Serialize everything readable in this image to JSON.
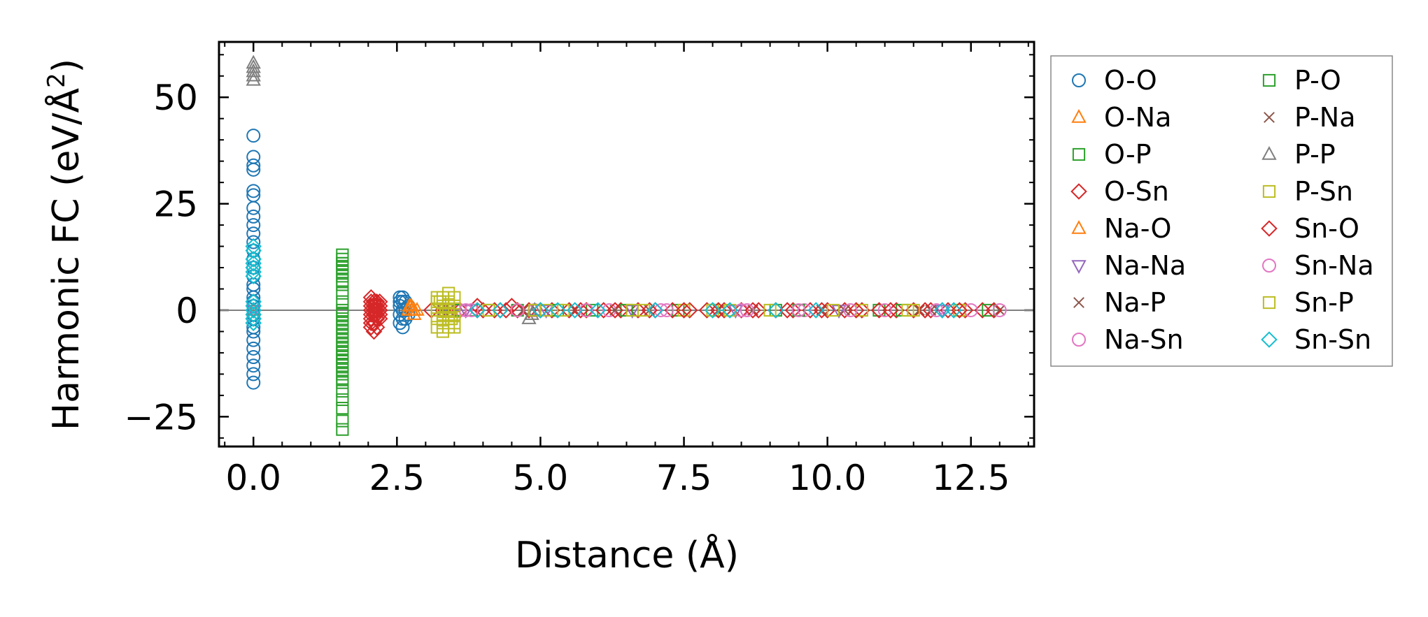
{
  "chart_data": {
    "type": "scatter",
    "title": "",
    "xlabel": "Distance (Å)",
    "ylabel": "Harmonic FC (eV/Å²)",
    "ylabel_main": "Harmonic FC (eV/Å",
    "ylabel_sup": "2",
    "ylabel_close": ")",
    "xlim": [
      -0.6,
      13.6
    ],
    "ylim": [
      -32,
      63
    ],
    "xticks": [
      0.0,
      2.5,
      5.0,
      7.5,
      10.0,
      12.5
    ],
    "xtick_labels": [
      "0.0",
      "2.5",
      "5.0",
      "7.5",
      "10.0",
      "12.5"
    ],
    "yticks": [
      -25,
      0,
      25,
      50
    ],
    "ytick_labels": [
      "−25",
      "0",
      "25",
      "50"
    ],
    "zero_line": 0,
    "grid": false,
    "legend_position": "outside-right",
    "series": [
      {
        "name": "O-O",
        "color": "#1f77b4",
        "marker": "circle",
        "x": [
          0,
          0,
          0,
          0,
          0,
          0,
          0,
          0,
          0,
          0,
          0,
          0,
          0,
          0,
          0,
          0,
          0,
          0,
          0,
          0,
          0,
          0,
          0,
          0,
          0,
          0,
          0,
          0,
          0,
          0,
          2.55,
          2.55,
          2.55,
          2.55,
          2.55,
          2.6,
          2.6,
          2.6,
          2.6,
          2.6,
          2.65,
          2.65,
          2.65,
          2.7,
          2.7
        ],
        "y": [
          41,
          36,
          34,
          33,
          28,
          27,
          24,
          22,
          20,
          18,
          16,
          14,
          12,
          10,
          8,
          6,
          5,
          3,
          2,
          1,
          -1,
          -2,
          -4,
          -5,
          -7,
          -9,
          -11,
          -13,
          -15,
          -17,
          3,
          2,
          1,
          -1,
          -3,
          3,
          2,
          0,
          -2,
          -4,
          2,
          0,
          -2,
          1,
          -1
        ]
      },
      {
        "name": "O-Na",
        "color": "#ff7f0e",
        "marker": "triangle-up",
        "x": [
          2.7,
          2.72,
          2.75,
          2.8,
          2.85
        ],
        "y": [
          0,
          1,
          0,
          -1,
          0
        ]
      },
      {
        "name": "O-P",
        "color": "#2ca02c",
        "marker": "square",
        "x": [
          1.55,
          1.55,
          1.55,
          1.55,
          1.55,
          1.55,
          1.55,
          1.55,
          1.55,
          1.55,
          1.55,
          1.55,
          1.55,
          1.55,
          1.55,
          1.55,
          1.55,
          1.55,
          1.55,
          1.55,
          1.55,
          1.55,
          1.55,
          1.55,
          1.55,
          1.55,
          1.55,
          1.55,
          3.8,
          4.6,
          5.9,
          7.4,
          9.1,
          10.9,
          12.3
        ],
        "y": [
          12,
          11,
          10,
          8,
          6,
          4,
          2,
          0,
          -1,
          -2,
          -3,
          -4,
          -5,
          -6,
          -7,
          -8,
          -9,
          -10,
          -11,
          -12,
          -13,
          -15,
          -17,
          -19,
          -21,
          -23,
          -26,
          -28,
          0,
          0,
          0,
          0,
          0,
          0,
          0
        ]
      },
      {
        "name": "O-Sn",
        "color": "#d62728",
        "marker": "diamond",
        "x": [
          2.05,
          2.05,
          2.05,
          2.05,
          2.05,
          2.05,
          2.05,
          2.05,
          2.1,
          2.1,
          2.1,
          2.1,
          2.1,
          2.1,
          2.15,
          2.15,
          2.15,
          2.15,
          2.15,
          2.15,
          2.2,
          2.2,
          2.2,
          2.2,
          2.2,
          3.1,
          3.3,
          3.6,
          3.9,
          4.0,
          4.2,
          4.4,
          4.6,
          4.8,
          5.2,
          5.5,
          5.8,
          6.1,
          6.4,
          6.7,
          7.0,
          7.3,
          7.6,
          7.9,
          8.2,
          8.5,
          8.8,
          9.1,
          9.4,
          9.7,
          10.0,
          10.3,
          10.6,
          10.9,
          11.2,
          11.5,
          11.8,
          12.1,
          12.4,
          12.7
        ],
        "y": [
          3,
          2,
          1,
          0,
          -1,
          -2,
          -3,
          -4,
          2,
          1,
          0,
          -1,
          -3,
          -5,
          2,
          1,
          0,
          -1,
          -2,
          -4,
          2,
          1,
          0,
          -1,
          -2,
          0,
          0,
          0,
          1,
          0,
          0,
          0,
          0,
          0,
          0,
          0,
          0,
          0,
          0,
          0,
          0,
          0,
          0,
          0,
          0,
          0,
          0,
          0,
          0,
          0,
          0,
          0,
          0,
          0,
          0,
          0,
          0,
          0,
          0,
          0
        ]
      },
      {
        "name": "Na-O",
        "color": "#ff7f0e",
        "marker": "triangle-up",
        "x": [
          2.75,
          2.8
        ],
        "y": [
          1,
          0
        ]
      },
      {
        "name": "Na-Na",
        "color": "#9467bd",
        "marker": "triangle-down",
        "x": [
          0,
          3.7,
          5.1,
          6.6,
          8.4,
          10.2,
          12.0
        ],
        "y": [
          0,
          0,
          0,
          0,
          0,
          0,
          0
        ]
      },
      {
        "name": "Na-P",
        "color": "#8c564b",
        "marker": "x",
        "x": [
          3.4,
          5.6,
          6.9,
          8.7,
          10.3,
          11.8,
          13.0
        ],
        "y": [
          0,
          0,
          0,
          0,
          0,
          0,
          0
        ]
      },
      {
        "name": "Na-Sn",
        "color": "#e377c2",
        "marker": "circle",
        "x": [
          3.6,
          3.8,
          4.9,
          6.2,
          7.1,
          8.5,
          9.6,
          11.0,
          12.5
        ],
        "y": [
          0,
          0,
          0,
          0,
          0,
          0,
          0,
          0,
          0
        ]
      },
      {
        "name": "P-O",
        "color": "#2ca02c",
        "marker": "square",
        "x": [
          1.55,
          1.55,
          1.55,
          1.55,
          1.55,
          1.55,
          1.55,
          1.55,
          3.5,
          4.1,
          5.3,
          6.5,
          8.0,
          9.5,
          11.3,
          12.8
        ],
        "y": [
          13,
          11,
          9,
          7,
          -10,
          -12,
          -14,
          -16,
          0,
          0,
          0,
          0,
          0,
          0,
          0,
          0
        ]
      },
      {
        "name": "P-Na",
        "color": "#8c564b",
        "marker": "x",
        "x": [
          3.3,
          4.7,
          6.3,
          8.1,
          9.9,
          11.6
        ],
        "y": [
          0,
          0,
          0,
          0,
          0,
          0
        ]
      },
      {
        "name": "P-P",
        "color": "#7f7f7f",
        "marker": "triangle-up",
        "x": [
          0,
          0,
          0,
          0,
          0,
          0,
          4.8,
          4.85,
          4.9
        ],
        "y": [
          58,
          57,
          56,
          55,
          54,
          0,
          -2,
          -1,
          0
        ]
      },
      {
        "name": "P-Sn",
        "color": "#bcbd22",
        "marker": "square",
        "x": [
          3.2,
          3.2,
          3.2,
          3.2,
          3.2,
          3.3,
          3.3,
          3.3,
          3.3,
          3.3,
          3.4,
          3.4,
          3.4,
          3.4,
          3.4,
          3.5,
          3.5,
          3.5,
          3.5,
          3.5,
          4.1,
          4.9,
          5.4,
          6.6,
          7.5,
          8.0,
          9.0,
          10.6,
          11.4,
          12.3
        ],
        "y": [
          3,
          2,
          0,
          -2,
          -4,
          3,
          1,
          -1,
          -3,
          -5,
          4,
          2,
          0,
          -2,
          -4,
          3,
          1,
          -1,
          -3,
          -4,
          0,
          0,
          0,
          0,
          0,
          0,
          0,
          0,
          0,
          0
        ]
      },
      {
        "name": "Sn-O",
        "color": "#d62728",
        "marker": "diamond",
        "x": [
          2.1,
          2.2,
          3.9,
          4.3,
          4.5,
          5.0,
          5.7,
          6.3,
          6.9,
          7.5,
          8.1,
          8.7,
          9.3,
          9.9,
          10.5,
          11.1,
          11.7,
          12.3,
          12.9
        ],
        "y": [
          2,
          0,
          0,
          0,
          1,
          0,
          0,
          0,
          0,
          0,
          0,
          0,
          0,
          0,
          0,
          0,
          0,
          0,
          0
        ]
      },
      {
        "name": "Sn-Na",
        "color": "#e377c2",
        "marker": "circle",
        "x": [
          3.7,
          4.6,
          5.8,
          7.2,
          8.6,
          9.5,
          10.4,
          11.9,
          13.0
        ],
        "y": [
          0,
          0,
          0,
          0,
          0,
          0,
          0,
          0,
          0
        ]
      },
      {
        "name": "Sn-P",
        "color": "#bcbd22",
        "marker": "square",
        "x": [
          3.25,
          3.35,
          3.45,
          5.1,
          6.8,
          8.3,
          10.1,
          11.5
        ],
        "y": [
          2,
          0,
          -2,
          0,
          0,
          0,
          0,
          0
        ]
      },
      {
        "name": "Sn-Sn",
        "color": "#17becf",
        "marker": "diamond",
        "x": [
          0,
          0,
          0,
          0,
          0,
          0,
          0,
          0,
          0,
          0,
          0,
          0,
          0,
          0,
          0,
          0,
          3.9,
          4.3,
          5.0,
          5.3,
          5.6,
          6.0,
          7.0,
          8.0,
          8.3,
          9.1,
          9.8,
          12.0,
          12.2
        ],
        "y": [
          15,
          14,
          12,
          11,
          10,
          9,
          8,
          2,
          1,
          0,
          -1,
          -2,
          -3,
          0,
          -2,
          -3,
          0,
          0,
          0,
          0,
          0,
          0,
          0,
          0,
          0,
          0,
          0,
          0,
          0
        ]
      }
    ]
  }
}
